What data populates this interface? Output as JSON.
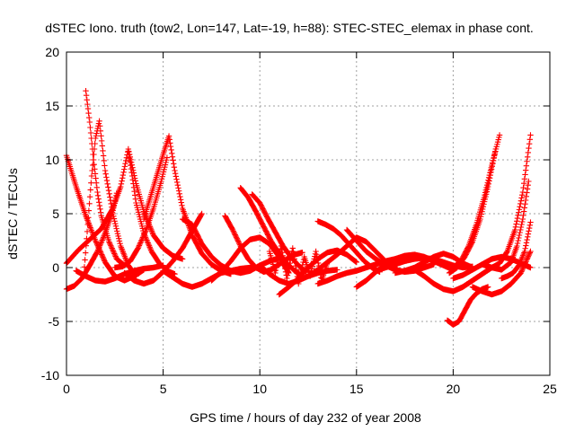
{
  "chart_data": {
    "type": "scatter",
    "title": "dSTEC Iono. truth (tow2, Lon=147, Lat=-19, h=88): STEC-STEC_elemax in phase cont.",
    "xlabel": "GPS time / hours of day 232 of year 2008",
    "ylabel": "dSTEC  / TECUs",
    "xlim": [
      0,
      25
    ],
    "ylim": [
      -10,
      20
    ],
    "xticks": [
      "0",
      "5",
      "10",
      "15",
      "20",
      "25"
    ],
    "yticks": [
      "-10",
      "-5",
      "0",
      "5",
      "10",
      "15",
      "20"
    ],
    "grid": true,
    "marker": "plus",
    "color": "#ff0000",
    "series": [
      {
        "x": [
          0.0,
          0.5,
          1.0,
          1.5,
          2.0,
          2.5,
          3.0,
          3.5,
          4.0
        ],
        "y": [
          10.4,
          7.5,
          4.8,
          2.5,
          0.5,
          -0.8,
          -1.2,
          -0.8,
          -0.2
        ]
      },
      {
        "x": [
          0.0,
          0.4,
          0.8,
          1.2,
          1.6,
          2.0,
          2.4,
          2.6
        ],
        "y": [
          -2.0,
          -1.7,
          -1.0,
          0.2,
          1.5,
          3.2,
          5.3,
          6.9
        ]
      },
      {
        "x": [
          0.0,
          0.6,
          1.2,
          1.8,
          2.4,
          2.8,
          3.2,
          3.6,
          4.0,
          4.5,
          5.0,
          5.5,
          6.0
        ],
        "y": [
          0.4,
          1.6,
          2.6,
          3.6,
          5.5,
          7.5,
          11.0,
          7.8,
          5.2,
          3.0,
          1.8,
          1.1,
          0.8
        ]
      },
      {
        "x": [
          0.9,
          1.1,
          1.3,
          1.5,
          1.7,
          2.0,
          2.4,
          2.8,
          3.2,
          3.6
        ],
        "y": [
          -0.6,
          4.0,
          8.5,
          12.0,
          13.6,
          9.0,
          5.0,
          2.0,
          0.2,
          -0.8
        ]
      },
      {
        "x": [
          1.0,
          1.2,
          1.4,
          1.6,
          1.8,
          2.2,
          2.6,
          3.0
        ],
        "y": [
          16.4,
          13.5,
          10.0,
          7.0,
          4.8,
          2.4,
          0.8,
          0.2
        ]
      },
      {
        "x": [
          0.5,
          1.0,
          1.5,
          2.0,
          2.5,
          3.0,
          3.5,
          4.0,
          4.5,
          5.0
        ],
        "y": [
          -0.3,
          -0.8,
          -1.2,
          -1.3,
          -1.0,
          -0.6,
          -0.3,
          -0.1,
          0.0,
          0.2
        ]
      },
      {
        "x": [
          2.5,
          2.9,
          3.3,
          3.7,
          4.1,
          4.5,
          4.9,
          5.2
        ],
        "y": [
          0.0,
          0.1,
          0.6,
          1.8,
          3.4,
          5.5,
          8.0,
          10.2
        ]
      },
      {
        "x": [
          3.2,
          3.4,
          3.6,
          4.0,
          4.4,
          4.8,
          5.2,
          5.6
        ],
        "y": [
          10.8,
          8.5,
          6.0,
          3.2,
          1.5,
          0.4,
          -0.3,
          -0.6
        ]
      },
      {
        "x": [
          4.0,
          4.5,
          5.0,
          5.3,
          5.6,
          6.0,
          6.5,
          7.0,
          7.5,
          8.0,
          8.5
        ],
        "y": [
          4.5,
          7.5,
          10.5,
          12.2,
          9.0,
          5.5,
          3.0,
          1.3,
          0.3,
          -0.3,
          -0.6
        ]
      },
      {
        "x": [
          3.0,
          3.5,
          4.0,
          4.5,
          5.0,
          5.5,
          6.0,
          6.5,
          7.0
        ],
        "y": [
          -0.5,
          -1.2,
          -1.5,
          -1.2,
          -0.4,
          0.6,
          1.8,
          3.4,
          5.0
        ]
      },
      {
        "x": [
          5.0,
          5.5,
          6.0,
          6.5,
          7.0,
          7.5,
          8.0,
          8.5,
          9.0,
          9.5,
          10.0
        ],
        "y": [
          -0.3,
          -0.9,
          -1.5,
          -1.8,
          -1.5,
          -1.0,
          -0.5,
          -0.3,
          -0.1,
          0.0,
          0.0
        ]
      },
      {
        "x": [
          6.0,
          6.5,
          7.0,
          7.5,
          8.0,
          8.5,
          9.0,
          9.5,
          10.0,
          10.5,
          11.0
        ],
        "y": [
          4.5,
          4.0,
          2.2,
          1.0,
          0.2,
          -0.3,
          -0.5,
          -0.3,
          0.2,
          0.6,
          0.9
        ]
      },
      {
        "x": [
          8.2,
          8.6,
          9.0,
          9.4,
          9.8,
          10.2,
          10.6,
          11.0,
          11.4,
          11.8,
          12.2
        ],
        "y": [
          4.8,
          3.5,
          2.0,
          0.8,
          0.0,
          -0.4,
          -0.2,
          0.3,
          0.8,
          1.2,
          1.4
        ]
      },
      {
        "x": [
          7.5,
          8.0,
          8.5,
          9.0,
          9.5,
          10.0,
          10.5,
          11.0,
          11.5
        ],
        "y": [
          -1.2,
          -0.4,
          0.6,
          1.8,
          2.6,
          2.8,
          2.2,
          1.0,
          -0.5
        ]
      },
      {
        "x": [
          9.0,
          9.4,
          9.8,
          10.2,
          10.6,
          11.0,
          11.4,
          11.8,
          12.2
        ],
        "y": [
          7.4,
          6.5,
          5.2,
          3.8,
          2.4,
          1.3,
          0.4,
          -0.3,
          -0.8
        ]
      },
      {
        "x": [
          9.6,
          10.0,
          10.4,
          10.8,
          11.2,
          11.6,
          12.0,
          12.4
        ],
        "y": [
          6.8,
          6.0,
          4.6,
          3.3,
          2.0,
          1.0,
          0.2,
          -0.4
        ]
      },
      {
        "x": [
          10.0,
          10.5,
          11.0,
          11.5,
          12.0,
          12.5,
          13.0,
          13.5,
          14.0
        ],
        "y": [
          0.2,
          -0.6,
          -1.2,
          -1.5,
          -1.2,
          -0.8,
          -0.5,
          -0.3,
          -0.2
        ]
      },
      {
        "x": [
          10.5,
          10.8,
          11.1,
          11.4,
          11.7,
          12.0,
          12.3,
          12.6,
          12.9,
          13.2,
          13.5
        ],
        "y": [
          1.5,
          -0.5,
          2.0,
          -1.0,
          1.8,
          -1.5,
          1.0,
          -0.8,
          1.5,
          -1.2,
          0.5
        ]
      },
      {
        "x": [
          11.0,
          11.5,
          12.0,
          12.5,
          13.0,
          13.5,
          14.0,
          14.5,
          15.0
        ],
        "y": [
          -2.5,
          -1.8,
          -1.0,
          0.0,
          0.8,
          1.4,
          1.6,
          1.2,
          0.5
        ]
      },
      {
        "x": [
          13.0,
          13.4,
          13.8,
          14.2,
          14.6,
          15.0,
          15.4,
          15.8,
          16.2
        ],
        "y": [
          4.3,
          4.0,
          3.6,
          3.0,
          2.2,
          1.4,
          0.6,
          0.0,
          -0.4
        ]
      },
      {
        "x": [
          12.5,
          13.0,
          13.5,
          14.0,
          14.5,
          15.0,
          15.5,
          16.0,
          16.5,
          17.0
        ],
        "y": [
          -0.8,
          -0.2,
          0.5,
          1.2,
          2.0,
          2.8,
          2.4,
          1.5,
          0.6,
          0.0
        ]
      },
      {
        "x": [
          13.0,
          13.5,
          14.0,
          14.5,
          15.0,
          15.5,
          16.0,
          16.5,
          17.0,
          17.5,
          18.0
        ],
        "y": [
          -1.5,
          -1.2,
          -0.8,
          -0.5,
          -0.3,
          0.0,
          0.3,
          0.6,
          0.8,
          1.0,
          1.0
        ]
      },
      {
        "x": [
          14.5,
          15.0,
          15.5,
          16.0,
          16.5,
          17.0,
          17.5,
          18.0,
          18.5,
          19.0
        ],
        "y": [
          3.5,
          2.5,
          1.5,
          0.8,
          0.2,
          -0.2,
          -0.4,
          -0.3,
          0.0,
          0.3
        ]
      },
      {
        "x": [
          15.0,
          15.5,
          16.0,
          16.5,
          17.0,
          17.5,
          18.0,
          18.5,
          19.0,
          19.5,
          20.0
        ],
        "y": [
          -1.8,
          -1.2,
          -0.4,
          0.3,
          0.8,
          1.1,
          1.2,
          1.0,
          0.6,
          0.2,
          -0.2
        ]
      },
      {
        "x": [
          16.0,
          16.5,
          17.0,
          17.5,
          18.0,
          18.5,
          19.0,
          19.5,
          20.0,
          20.5,
          21.0
        ],
        "y": [
          -0.3,
          0.0,
          0.3,
          0.6,
          0.8,
          0.9,
          0.8,
          0.5,
          0.2,
          0.0,
          0.1
        ]
      },
      {
        "x": [
          17.0,
          17.5,
          18.0,
          18.5,
          19.0,
          19.5,
          20.0,
          20.5,
          21.0
        ],
        "y": [
          -0.5,
          -0.3,
          0.0,
          0.5,
          1.0,
          1.3,
          1.0,
          0.4,
          0.0
        ]
      },
      {
        "x": [
          18.0,
          18.5,
          19.0,
          19.5,
          20.0,
          20.5,
          21.0,
          21.5,
          22.0
        ],
        "y": [
          -0.2,
          -0.8,
          -1.5,
          -2.0,
          -2.2,
          -1.8,
          -1.2,
          -0.6,
          0.0
        ]
      },
      {
        "x": [
          19.7,
          20.0,
          20.3,
          20.6,
          20.9,
          21.2,
          21.5,
          21.8
        ],
        "y": [
          -4.9,
          -5.3,
          -5.0,
          -4.0,
          -3.0,
          -2.4,
          -2.0,
          -1.8
        ]
      },
      {
        "x": [
          20.0,
          20.4,
          20.8,
          21.2,
          21.6,
          22.0,
          22.4
        ],
        "y": [
          0.0,
          0.6,
          2.0,
          4.0,
          6.5,
          9.5,
          12.3
        ]
      },
      {
        "x": [
          19.8,
          20.2,
          20.6,
          21.0,
          21.4,
          21.8,
          22.2
        ],
        "y": [
          -0.5,
          0.0,
          1.0,
          2.4,
          4.5,
          7.5,
          11.0
        ]
      },
      {
        "x": [
          20.0,
          20.5,
          21.0,
          21.5,
          22.0,
          22.5,
          23.0,
          23.5,
          24.0
        ],
        "y": [
          -1.0,
          -0.7,
          -0.2,
          0.3,
          0.8,
          1.0,
          0.8,
          0.4,
          0.0
        ]
      },
      {
        "x": [
          21.0,
          21.5,
          22.0,
          22.5,
          23.0,
          23.5,
          24.0
        ],
        "y": [
          -1.8,
          -2.2,
          -2.5,
          -2.2,
          -1.5,
          -0.5,
          1.5
        ]
      },
      {
        "x": [
          21.5,
          22.0,
          22.5,
          23.0,
          23.3,
          23.6,
          23.9
        ],
        "y": [
          0.3,
          0.0,
          -0.2,
          0.5,
          2.0,
          4.5,
          8.0
        ]
      },
      {
        "x": [
          22.0,
          22.4,
          22.8,
          23.2,
          23.6,
          24.0
        ],
        "y": [
          0.0,
          0.4,
          1.5,
          3.5,
          7.0,
          12.3
        ]
      },
      {
        "x": [
          22.5,
          22.8,
          23.1,
          23.4,
          23.7,
          24.0
        ],
        "y": [
          -1.0,
          -0.8,
          -0.5,
          0.2,
          1.5,
          4.2
        ]
      }
    ]
  }
}
